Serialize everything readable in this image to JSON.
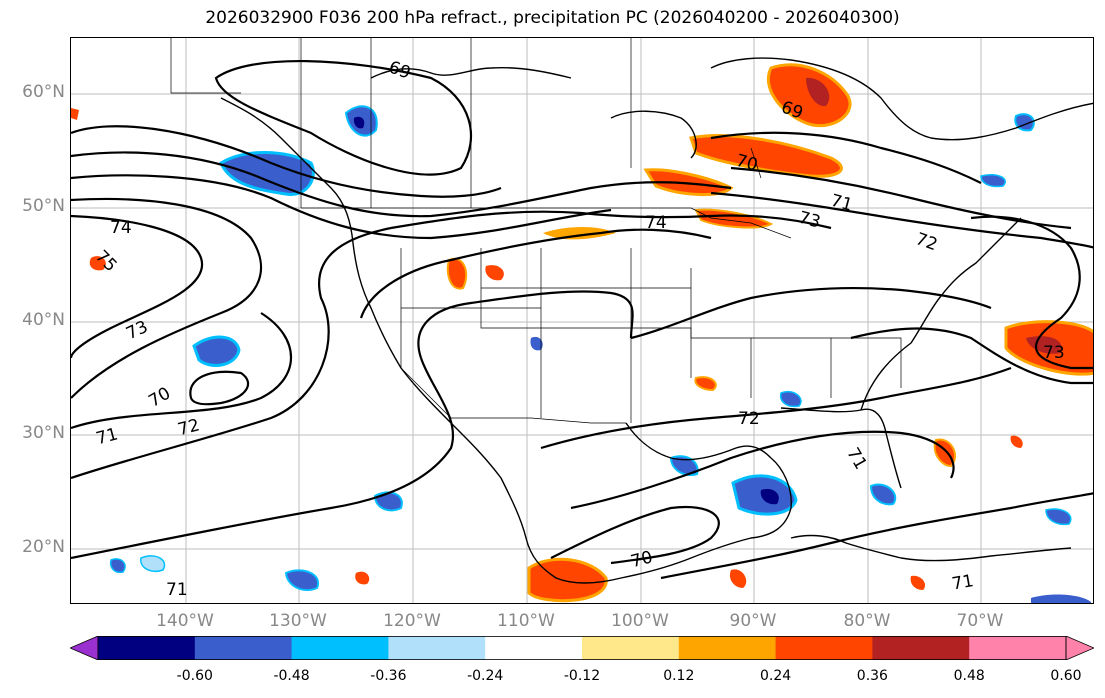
{
  "title": "2026032900 F036 200 hPa refract., precipitation PC (2026040200 - 2026040300)",
  "lat_labels": [
    "60°N",
    "50°N",
    "40°N",
    "30°N",
    "20°N"
  ],
  "lon_labels": [
    "140°W",
    "130°W",
    "120°W",
    "110°W",
    "100°W",
    "90°W",
    "80°W",
    "70°W"
  ],
  "contour_labels": [
    "69",
    "69",
    "70",
    "71",
    "72",
    "73",
    "74",
    "74",
    "75",
    "73",
    "70",
    "71",
    "72",
    "72",
    "71",
    "70",
    "71",
    "71",
    "73"
  ],
  "colorbar": {
    "colors": [
      "#9b30d0",
      "#000080",
      "#3a5fcd",
      "#00bfff",
      "#b0e0fa",
      "#ffffff",
      "#ffe88a",
      "#ffa500",
      "#ff4500",
      "#b22222",
      "#ff82ab",
      "#ff82ab"
    ],
    "tick_labels": [
      "-0.60",
      "-0.48",
      "-0.36",
      "-0.24",
      "-0.12",
      "0.12",
      "0.24",
      "0.36",
      "0.48",
      "0.60"
    ]
  }
}
